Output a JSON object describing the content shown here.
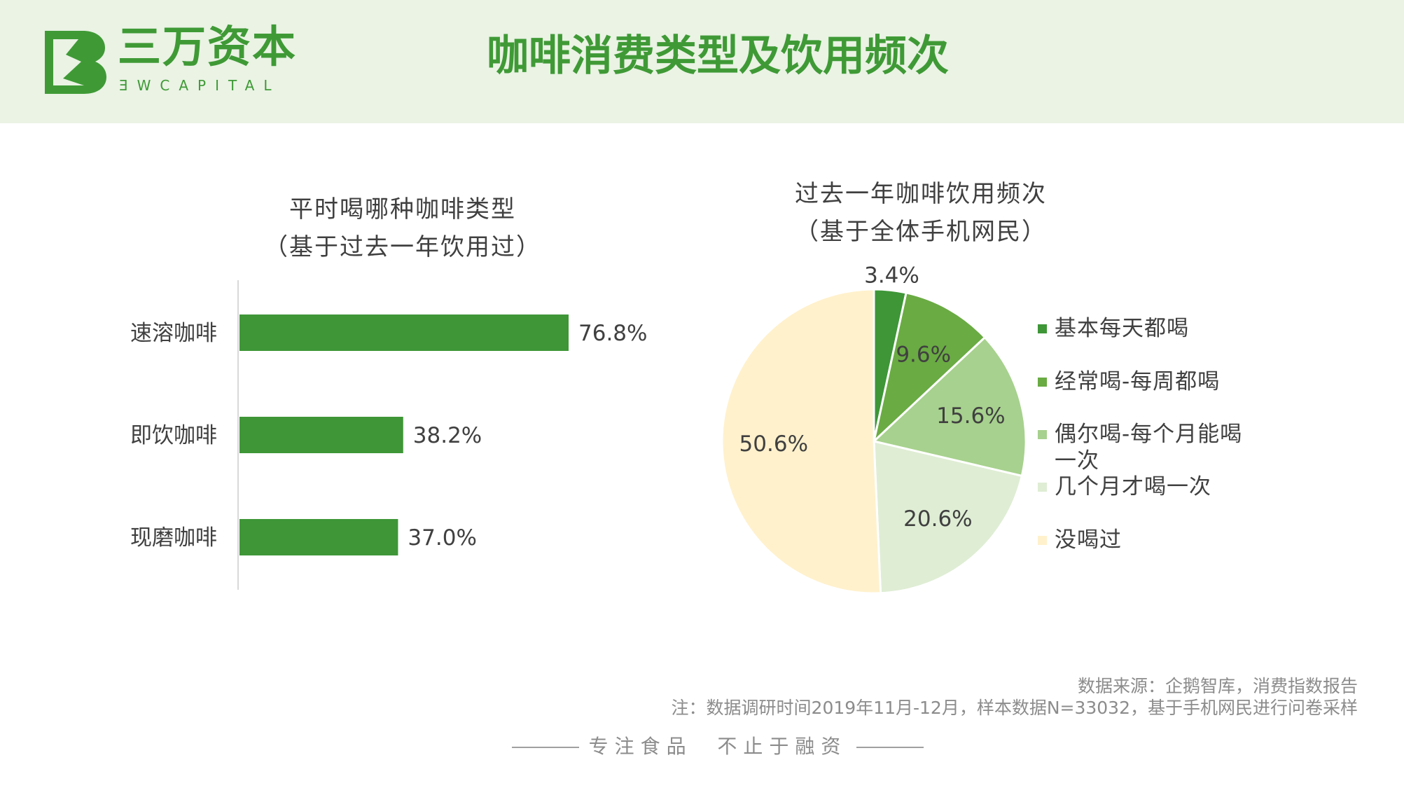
{
  "header": {
    "logo_cn": "三万资本",
    "logo_en": "ƎWCAPITAL",
    "title": "咖啡消费类型及饮用频次"
  },
  "colors": {
    "brand": "#3f9a36",
    "header_bg": "#eaf3e4",
    "bar": "#3e9637",
    "pie": [
      "#3e9637",
      "#6aab43",
      "#a7d18e",
      "#dfedd4",
      "#fff1cc"
    ]
  },
  "chart_data": [
    {
      "type": "bar",
      "orientation": "horizontal",
      "title_lines": [
        "平时喝哪种咖啡类型",
        "（基于过去一年饮用过）"
      ],
      "categories": [
        "速溶咖啡",
        "即饮咖啡",
        "现磨咖啡"
      ],
      "values": [
        76.8,
        38.2,
        37.0
      ],
      "value_labels": [
        "76.8%",
        "38.2%",
        "37.0%"
      ],
      "unit": "%",
      "xlim": [
        0,
        100
      ],
      "grid": false,
      "legend": "none"
    },
    {
      "type": "pie",
      "title_lines": [
        "过去一年咖啡饮用频次",
        "（基于全体手机网民）"
      ],
      "labels": [
        "基本每天都喝",
        "经常喝-每周都喝",
        "偶尔喝-每个月能喝一次",
        "几个月才喝一次",
        "没喝过"
      ],
      "legend_lines": [
        [
          "基本每天都喝"
        ],
        [
          "经常喝-每周都喝"
        ],
        [
          "偶尔喝-每个月能喝",
          "一次"
        ],
        [
          "几个月才喝一次"
        ],
        [
          "没喝过"
        ]
      ],
      "values": [
        3.4,
        9.6,
        15.6,
        20.6,
        50.6
      ],
      "value_labels": [
        "3.4%",
        "9.6%",
        "15.6%",
        "20.6%",
        "50.6%"
      ],
      "unit": "%",
      "start": "12 o'clock, clockwise",
      "legend": "right"
    }
  ],
  "source": {
    "line1": "数据来源：企鹅智库，消费指数报告",
    "line2": "注：数据调研时间2019年11月-12月，样本数据N=33032，基于手机网民进行问卷采样"
  },
  "footer": {
    "left": "专注食品",
    "right": "不止于融资"
  }
}
